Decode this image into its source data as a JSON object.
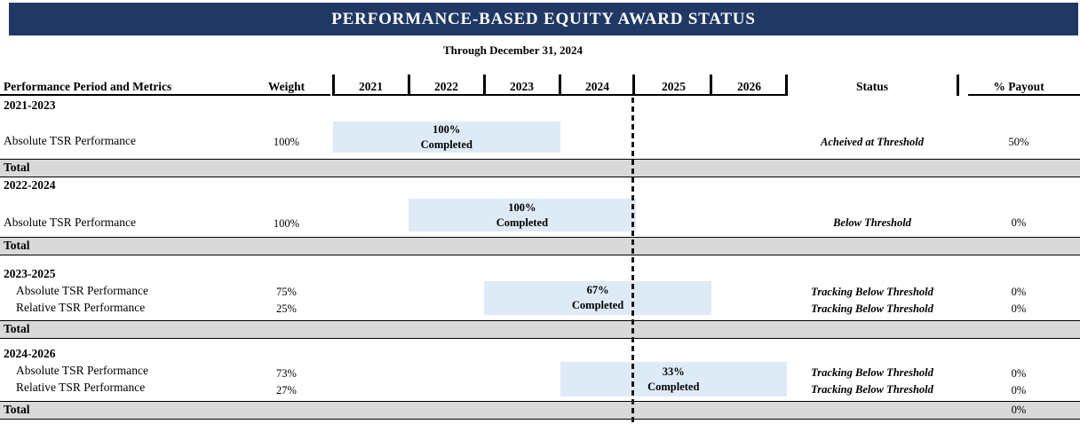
{
  "title": "PERFORMANCE-BASED EQUITY AWARD STATUS",
  "subtitle": "Through December 31, 2024",
  "colors": {
    "banner_navy": "#1f3864",
    "bar_blue": "#deebf7",
    "total_gray": "#d9d9d9"
  },
  "columns": {
    "metrics": "Performance Period and Metrics",
    "weight": "Weight",
    "status": "Status",
    "payout": "% Payout",
    "total_label": "Total"
  },
  "chart_data": {
    "type": "gantt",
    "title": "PERFORMANCE-BASED EQUITY AWARD STATUS",
    "subtitle": "Through December 31, 2024",
    "years": [
      "2021",
      "2022",
      "2023",
      "2024",
      "2025",
      "2026"
    ],
    "as_of_marker_after_year": "2024",
    "periods": [
      {
        "period": "2021-2023",
        "rows": [
          {
            "metric": "Absolute TSR Performance",
            "weight": "100%",
            "status": "Acheived at Threshold",
            "payout": "50%"
          }
        ],
        "bar": {
          "start_year": 2021,
          "end_year": 2023,
          "pct": "100%",
          "caption": "Completed"
        },
        "total_payout": ""
      },
      {
        "period": "2022-2024",
        "rows": [
          {
            "metric": "Absolute TSR Performance",
            "weight": "100%",
            "status": "Below Threshold",
            "payout": "0%"
          }
        ],
        "bar": {
          "start_year": 2022,
          "end_year": 2024,
          "pct": "100%",
          "caption": "Completed"
        },
        "total_payout": ""
      },
      {
        "period": "2023-2025",
        "rows": [
          {
            "metric": "Absolute TSR Performance",
            "weight": "75%",
            "status": "Tracking Below Threshold",
            "payout": "0%"
          },
          {
            "metric": "Relative TSR Performance",
            "weight": "25%",
            "status": "Tracking Below Threshold",
            "payout": "0%"
          }
        ],
        "bar": {
          "start_year": 2023,
          "end_year": 2025,
          "pct": "67%",
          "caption": "Completed"
        },
        "total_payout": ""
      },
      {
        "period": "2024-2026",
        "rows": [
          {
            "metric": "Absolute TSR Performance",
            "weight": "73%",
            "status": "Tracking Below Threshold",
            "payout": "0%"
          },
          {
            "metric": "Relative TSR Performance",
            "weight": "27%",
            "status": "Tracking Below Threshold",
            "payout": "0%"
          }
        ],
        "bar": {
          "start_year": 2024,
          "end_year": 2026,
          "pct": "33%",
          "caption": "Completed"
        },
        "total_payout": "0%"
      }
    ]
  }
}
